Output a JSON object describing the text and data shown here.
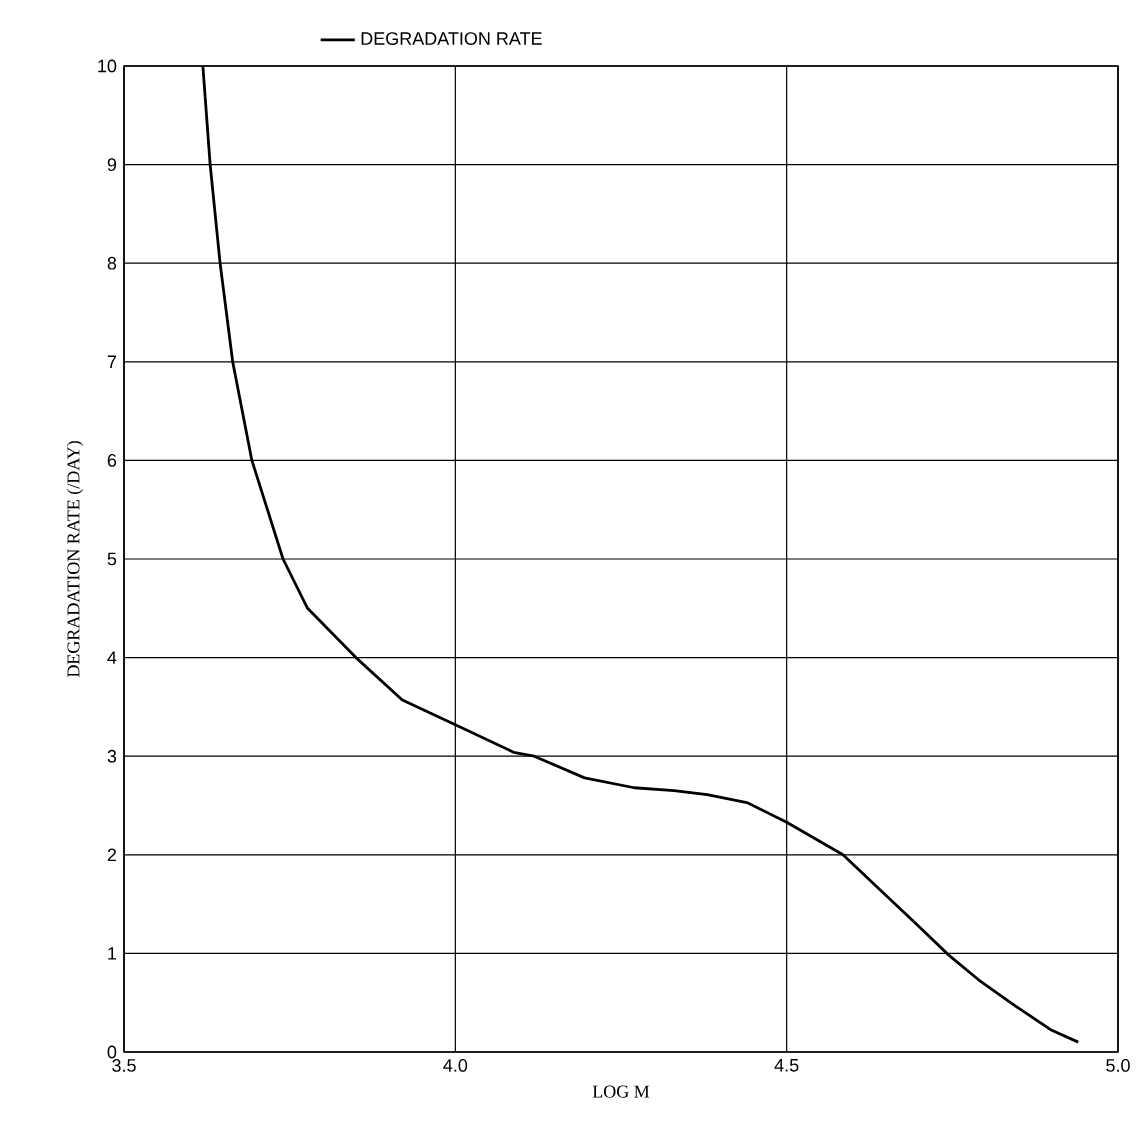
{
  "chart_data": {
    "type": "line",
    "xlabel": "LOG M",
    "ylabel": "DEGRADATION RATE (/DAY)",
    "x": [
      3.619,
      3.63,
      3.645,
      3.664,
      3.693,
      3.74,
      3.777,
      3.85,
      3.92,
      4.0,
      4.088,
      4.119,
      4.195,
      4.27,
      4.33,
      4.38,
      4.44,
      4.5,
      4.585,
      4.64,
      4.7,
      4.745,
      4.79,
      4.84,
      4.9,
      4.94
    ],
    "series": [
      {
        "name": "DEGRADATION RATE",
        "color": "#000000",
        "values": [
          10,
          9,
          8,
          7,
          6,
          5,
          4.5,
          4,
          3.57,
          3.32,
          3.04,
          3.0,
          2.78,
          2.68,
          2.65,
          2.61,
          2.53,
          2.33,
          2.0,
          1.65,
          1.27,
          0.98,
          0.73,
          0.49,
          0.22,
          0.1
        ]
      }
    ],
    "xlim": [
      3.5,
      5.0
    ],
    "ylim": [
      0,
      10
    ],
    "xticks": [
      3.5,
      {
        "value": 4.0,
        "label": "4.0"
      },
      4.5,
      {
        "value": 5.0,
        "label": "5.0"
      }
    ],
    "yticks": [
      0,
      1,
      2,
      3,
      4,
      5,
      6,
      7,
      8,
      9,
      10
    ],
    "grid": true,
    "legend": "top left",
    "marker": "none",
    "line_style": "solid"
  }
}
